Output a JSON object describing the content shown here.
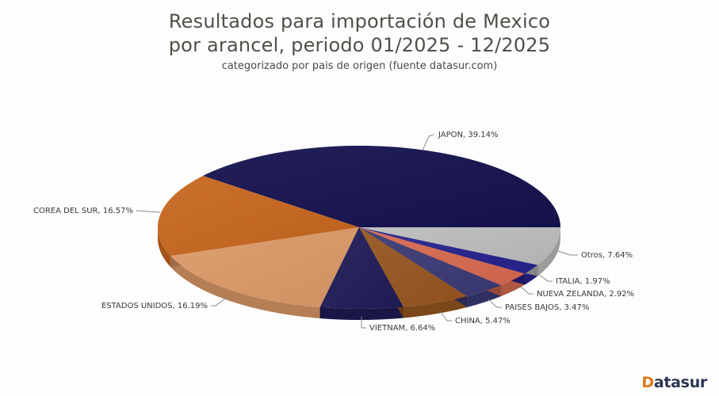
{
  "header": {
    "title_line1": "Resultados para importación de Mexico",
    "title_line2": "por arancel, periodo 01/2025 - 12/2025",
    "subtitle": "categorizado por pais de origen (fuente datasur.com)"
  },
  "logo": {
    "initial": "D",
    "rest": "atasur"
  },
  "chart_data": {
    "type": "pie",
    "style": "3d",
    "title": "Resultados para importación de Mexico por arancel, periodo 01/2025 - 12/2025",
    "subtitle": "categorizado por pais de origen (fuente datasur.com)",
    "legend": "none (inline data labels)",
    "slices": [
      {
        "label": "JAPON",
        "value": 39.14,
        "color": "#15124f",
        "label_text": "JAPON, 39.14%"
      },
      {
        "label": "COREA DEL SUR",
        "value": 16.57,
        "color": "#c8671f",
        "label_text": "COREA DEL SUR, 16.57%"
      },
      {
        "label": "ESTADOS UNIDOS",
        "value": 16.19,
        "color": "#dd9a68",
        "label_text": "ESTADOS UNIDOS, 16.19%"
      },
      {
        "label": "VIETNAM",
        "value": 6.64,
        "color": "#201c58",
        "label_text": "VIETNAM, 6.64%"
      },
      {
        "label": "CHINA",
        "value": 5.47,
        "color": "#97561f",
        "label_text": "CHINA, 5.47%"
      },
      {
        "label": "PAISES BAJOS",
        "value": 3.47,
        "color": "#3b3a75",
        "label_text": "PAISES BAJOS, 3.47%"
      },
      {
        "label": "NUEVA ZELANDA",
        "value": 2.92,
        "color": "#d86a50",
        "label_text": "NUEVA ZELANDA, 2.92%"
      },
      {
        "label": "ITALIA",
        "value": 1.97,
        "color": "#26238e",
        "label_text": "ITALIA, 1.97%"
      },
      {
        "label": "Otros",
        "value": 7.64,
        "color": "#bdbdbd",
        "label_text": "Otros, 7.64%"
      }
    ]
  }
}
